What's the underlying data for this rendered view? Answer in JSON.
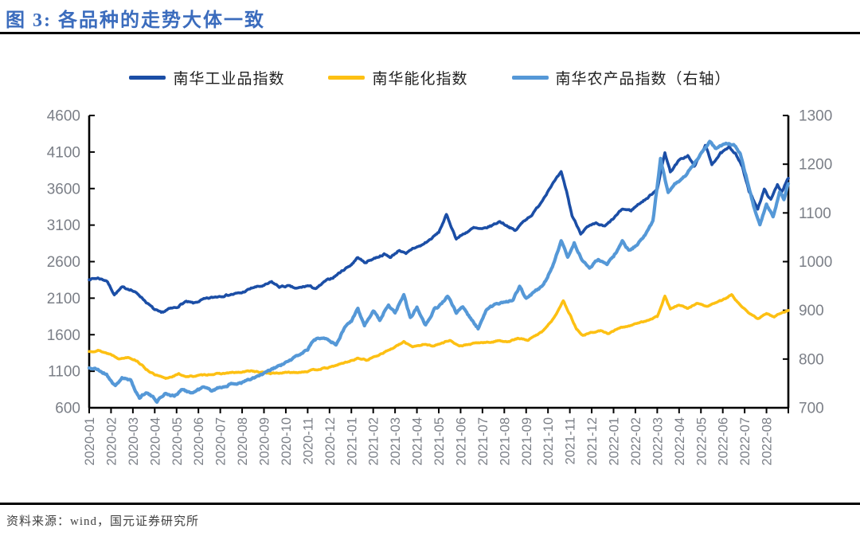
{
  "title": "图 3: 各品种的走势大体一致",
  "source_note": "资料来源：wind，国元证券研究所",
  "colors": {
    "title": "#3b6cbd",
    "rule": "#000000",
    "axis_line": "#000000",
    "axis_label": "#7b7f87",
    "legend_text": "#1f1f1f",
    "source_text": "#404040"
  },
  "chart_data": {
    "type": "line",
    "title": "",
    "legend_position": "top",
    "grid": false,
    "x_tick_labels": [
      "2020-01",
      "2020-02",
      "2020-03",
      "2020-04",
      "2020-05",
      "2020-06",
      "2020-07",
      "2020-08",
      "2020-09",
      "2020-10",
      "2020-11",
      "2020-12",
      "2021-01",
      "2021-02",
      "2021-03",
      "2021-04",
      "2021-05",
      "2021-06",
      "2021-07",
      "2021-08",
      "2021-09",
      "2021-10",
      "2021-11",
      "2021-12",
      "2022-01",
      "2022-02",
      "2022-03",
      "2022-04",
      "2022-05",
      "2022-06",
      "2022-07",
      "2022-08"
    ],
    "left_axis": {
      "min": 600,
      "max": 4600,
      "step": 500,
      "ticks": [
        4600,
        4100,
        3600,
        3100,
        2600,
        2100,
        1600,
        1100,
        600
      ]
    },
    "right_axis": {
      "min": 700,
      "max": 1300,
      "step": 100,
      "ticks": [
        1300,
        1200,
        1100,
        1000,
        900,
        800,
        700
      ]
    },
    "series": [
      {
        "name": "南华工业品指数",
        "axis": "left",
        "color": "#1b4ea6",
        "width": 3.6,
        "noise": 16,
        "seed": 7,
        "anchors": [
          [
            0,
            2360
          ],
          [
            0.4,
            2375
          ],
          [
            0.8,
            2340
          ],
          [
            1.15,
            2150
          ],
          [
            1.5,
            2245
          ],
          [
            1.9,
            2220
          ],
          [
            2.3,
            2140
          ],
          [
            2.7,
            2020
          ],
          [
            3,
            1940
          ],
          [
            3.3,
            1895
          ],
          [
            3.6,
            1945
          ],
          [
            4,
            1975
          ],
          [
            4.4,
            2050
          ],
          [
            4.8,
            2030
          ],
          [
            5.2,
            2080
          ],
          [
            5.6,
            2105
          ],
          [
            6,
            2130
          ],
          [
            6.5,
            2150
          ],
          [
            7,
            2175
          ],
          [
            7.5,
            2245
          ],
          [
            8,
            2270
          ],
          [
            8.35,
            2320
          ],
          [
            8.7,
            2255
          ],
          [
            9.1,
            2265
          ],
          [
            9.5,
            2230
          ],
          [
            10,
            2270
          ],
          [
            10.4,
            2230
          ],
          [
            10.8,
            2330
          ],
          [
            11.2,
            2390
          ],
          [
            11.6,
            2480
          ],
          [
            12,
            2560
          ],
          [
            12.3,
            2660
          ],
          [
            12.6,
            2585
          ],
          [
            13,
            2640
          ],
          [
            13.5,
            2700
          ],
          [
            13.8,
            2660
          ],
          [
            14.2,
            2760
          ],
          [
            14.5,
            2700
          ],
          [
            14.8,
            2780
          ],
          [
            15.2,
            2820
          ],
          [
            15.6,
            2900
          ],
          [
            16,
            3000
          ],
          [
            16.35,
            3240
          ],
          [
            16.8,
            2915
          ],
          [
            17.2,
            2990
          ],
          [
            17.6,
            3060
          ],
          [
            18,
            3040
          ],
          [
            18.4,
            3090
          ],
          [
            18.8,
            3150
          ],
          [
            19.2,
            3080
          ],
          [
            19.5,
            3020
          ],
          [
            19.9,
            3160
          ],
          [
            20.3,
            3250
          ],
          [
            20.7,
            3420
          ],
          [
            21.1,
            3620
          ],
          [
            21.6,
            3820
          ],
          [
            21.85,
            3560
          ],
          [
            22.1,
            3230
          ],
          [
            22.5,
            2990
          ],
          [
            22.8,
            3070
          ],
          [
            23.2,
            3120
          ],
          [
            23.6,
            3080
          ],
          [
            24,
            3190
          ],
          [
            24.4,
            3320
          ],
          [
            24.8,
            3300
          ],
          [
            25.2,
            3400
          ],
          [
            25.6,
            3480
          ],
          [
            26,
            3600
          ],
          [
            26.35,
            4090
          ],
          [
            26.6,
            3830
          ],
          [
            27,
            3985
          ],
          [
            27.4,
            4050
          ],
          [
            27.7,
            3905
          ],
          [
            28.2,
            4190
          ],
          [
            28.5,
            3935
          ],
          [
            28.9,
            4080
          ],
          [
            29.3,
            4160
          ],
          [
            29.6,
            4080
          ],
          [
            29.9,
            3890
          ],
          [
            30.2,
            3560
          ],
          [
            30.6,
            3330
          ],
          [
            30.9,
            3585
          ],
          [
            31.2,
            3445
          ],
          [
            31.5,
            3655
          ],
          [
            31.7,
            3560
          ],
          [
            32,
            3740
          ]
        ]
      },
      {
        "name": "南华能化指数",
        "axis": "left",
        "color": "#fdc013",
        "width": 3.6,
        "noise": 11,
        "seed": 13,
        "anchors": [
          [
            0,
            1370
          ],
          [
            0.4,
            1385
          ],
          [
            1,
            1330
          ],
          [
            1.4,
            1270
          ],
          [
            1.8,
            1295
          ],
          [
            2.2,
            1240
          ],
          [
            2.6,
            1130
          ],
          [
            3,
            1050
          ],
          [
            3.5,
            1000
          ],
          [
            3.8,
            1030
          ],
          [
            4.1,
            1060
          ],
          [
            4.5,
            1025
          ],
          [
            5,
            1040
          ],
          [
            5.5,
            1058
          ],
          [
            6,
            1065
          ],
          [
            6.5,
            1080
          ],
          [
            7,
            1085
          ],
          [
            7.4,
            1108
          ],
          [
            7.8,
            1085
          ],
          [
            8.3,
            1072
          ],
          [
            9,
            1080
          ],
          [
            9.6,
            1088
          ],
          [
            10,
            1100
          ],
          [
            10.5,
            1128
          ],
          [
            11,
            1150
          ],
          [
            11.5,
            1200
          ],
          [
            12,
            1245
          ],
          [
            12.3,
            1278
          ],
          [
            12.7,
            1252
          ],
          [
            13,
            1290
          ],
          [
            13.5,
            1360
          ],
          [
            14,
            1430
          ],
          [
            14.4,
            1500
          ],
          [
            14.8,
            1440
          ],
          [
            15.3,
            1465
          ],
          [
            15.8,
            1450
          ],
          [
            16.2,
            1490
          ],
          [
            16.5,
            1528
          ],
          [
            16.9,
            1445
          ],
          [
            17.3,
            1460
          ],
          [
            17.8,
            1490
          ],
          [
            18.3,
            1494
          ],
          [
            18.8,
            1520
          ],
          [
            19.2,
            1505
          ],
          [
            19.6,
            1548
          ],
          [
            20.1,
            1527
          ],
          [
            20.7,
            1636
          ],
          [
            21.2,
            1800
          ],
          [
            21.7,
            2060
          ],
          [
            22,
            1880
          ],
          [
            22.3,
            1680
          ],
          [
            22.6,
            1588
          ],
          [
            23,
            1630
          ],
          [
            23.4,
            1655
          ],
          [
            23.8,
            1610
          ],
          [
            24.2,
            1690
          ],
          [
            24.6,
            1715
          ],
          [
            25,
            1745
          ],
          [
            25.5,
            1795
          ],
          [
            26,
            1848
          ],
          [
            26.35,
            2128
          ],
          [
            26.6,
            1952
          ],
          [
            27,
            2005
          ],
          [
            27.4,
            1958
          ],
          [
            27.8,
            2030
          ],
          [
            28.3,
            1985
          ],
          [
            28.7,
            2045
          ],
          [
            29,
            2070
          ],
          [
            29.4,
            2148
          ],
          [
            29.8,
            2000
          ],
          [
            30.2,
            1890
          ],
          [
            30.6,
            1822
          ],
          [
            31,
            1885
          ],
          [
            31.35,
            1848
          ],
          [
            31.7,
            1905
          ],
          [
            32,
            1932
          ]
        ]
      },
      {
        "name": "南华农产品指数（右轴）",
        "axis": "right",
        "color": "#5598d7",
        "width": 4.2,
        "noise": 3,
        "seed": 21,
        "anchors": [
          [
            0,
            782
          ],
          [
            0.4,
            778
          ],
          [
            0.8,
            768
          ],
          [
            1.2,
            744
          ],
          [
            1.5,
            762
          ],
          [
            1.9,
            755
          ],
          [
            2.3,
            720
          ],
          [
            2.6,
            733
          ],
          [
            3.1,
            714
          ],
          [
            3.5,
            730
          ],
          [
            3.9,
            724
          ],
          [
            4.3,
            738
          ],
          [
            4.7,
            730
          ],
          [
            5.2,
            742
          ],
          [
            5.6,
            736
          ],
          [
            6,
            742
          ],
          [
            6.5,
            748
          ],
          [
            7,
            752
          ],
          [
            7.5,
            760
          ],
          [
            8,
            770
          ],
          [
            8.5,
            782
          ],
          [
            9,
            792
          ],
          [
            9.5,
            806
          ],
          [
            10,
            820
          ],
          [
            10.3,
            840
          ],
          [
            10.7,
            846
          ],
          [
            11,
            840
          ],
          [
            11.3,
            828
          ],
          [
            11.7,
            866
          ],
          [
            12,
            878
          ],
          [
            12.3,
            902
          ],
          [
            12.6,
            868
          ],
          [
            13,
            901
          ],
          [
            13.3,
            880
          ],
          [
            13.7,
            912
          ],
          [
            14,
            896
          ],
          [
            14.4,
            932
          ],
          [
            14.7,
            885
          ],
          [
            15,
            906
          ],
          [
            15.4,
            870
          ],
          [
            15.8,
            902
          ],
          [
            16.1,
            912
          ],
          [
            16.4,
            930
          ],
          [
            16.8,
            895
          ],
          [
            17.1,
            908
          ],
          [
            17.5,
            880
          ],
          [
            17.8,
            863
          ],
          [
            18.2,
            902
          ],
          [
            18.6,
            912
          ],
          [
            19,
            918
          ],
          [
            19.4,
            922
          ],
          [
            19.7,
            948
          ],
          [
            20,
            925
          ],
          [
            20.4,
            938
          ],
          [
            20.8,
            952
          ],
          [
            21.2,
            990
          ],
          [
            21.6,
            1042
          ],
          [
            21.9,
            1010
          ],
          [
            22.2,
            1038
          ],
          [
            22.6,
            1000
          ],
          [
            22.9,
            988
          ],
          [
            23.3,
            1004
          ],
          [
            23.7,
            996
          ],
          [
            24,
            1010
          ],
          [
            24.4,
            1042
          ],
          [
            24.7,
            1022
          ],
          [
            25,
            1032
          ],
          [
            25.4,
            1052
          ],
          [
            25.8,
            1082
          ],
          [
            26.15,
            1210
          ],
          [
            26.5,
            1140
          ],
          [
            26.8,
            1158
          ],
          [
            27.2,
            1172
          ],
          [
            27.6,
            1196
          ],
          [
            28,
            1222
          ],
          [
            28.4,
            1248
          ],
          [
            28.7,
            1232
          ],
          [
            29.1,
            1243
          ],
          [
            29.5,
            1238
          ],
          [
            29.8,
            1222
          ],
          [
            30.1,
            1170
          ],
          [
            30.45,
            1108
          ],
          [
            30.7,
            1076
          ],
          [
            31,
            1117
          ],
          [
            31.3,
            1092
          ],
          [
            31.6,
            1142
          ],
          [
            31.8,
            1128
          ],
          [
            32,
            1160
          ]
        ]
      }
    ]
  }
}
